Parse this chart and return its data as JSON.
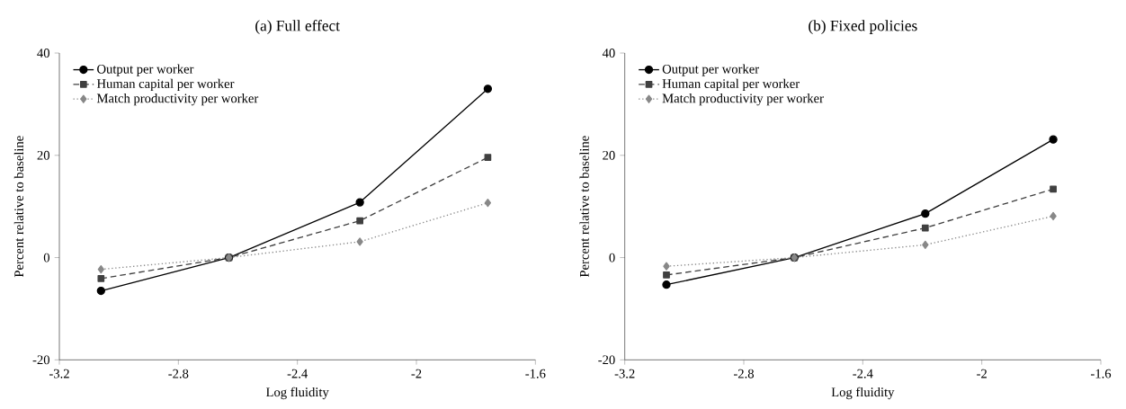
{
  "chart_data": [
    {
      "type": "line",
      "title": "(a) Full effect",
      "xlabel": "Log fluidity",
      "ylabel": "Percent relative to baseline",
      "x": [
        -3.06,
        -2.63,
        -2.19,
        -1.76
      ],
      "xlim": [
        -3.2,
        -1.6
      ],
      "xticks": [
        -3.2,
        -2.8,
        -2.4,
        -2,
        -1.6
      ],
      "ylim": [
        -20,
        40
      ],
      "yticks": [
        -20,
        0,
        20,
        40
      ],
      "legend": "top left",
      "series": [
        {
          "name": "Output per worker",
          "color": "#000000",
          "marker": "circle",
          "line_style": "solid",
          "values": [
            -6.5,
            0,
            10.8,
            33.0
          ]
        },
        {
          "name": "Human capital per worker",
          "color": "#404040",
          "marker": "square",
          "line_style": "dashed",
          "values": [
            -4.1,
            0,
            7.2,
            19.6
          ]
        },
        {
          "name": "Match productivity per worker",
          "color": "#888888",
          "marker": "diamond",
          "line_style": "dotted",
          "values": [
            -2.3,
            0,
            3.1,
            10.7
          ]
        }
      ]
    },
    {
      "type": "line",
      "title": "(b) Fixed policies",
      "xlabel": "Log fluidity",
      "ylabel": "Percent relative to baseline",
      "x": [
        -3.06,
        -2.63,
        -2.19,
        -1.76
      ],
      "xlim": [
        -3.2,
        -1.6
      ],
      "xticks": [
        -3.2,
        -2.8,
        -2.4,
        -2,
        -1.6
      ],
      "ylim": [
        -20,
        40
      ],
      "yticks": [
        -20,
        0,
        20,
        40
      ],
      "legend": "top left",
      "series": [
        {
          "name": "Output per worker",
          "color": "#000000",
          "marker": "circle",
          "line_style": "solid",
          "values": [
            -5.3,
            0,
            8.6,
            23.1
          ]
        },
        {
          "name": "Human capital per worker",
          "color": "#404040",
          "marker": "square",
          "line_style": "dashed",
          "values": [
            -3.4,
            0,
            5.8,
            13.4
          ]
        },
        {
          "name": "Match productivity per worker",
          "color": "#888888",
          "marker": "diamond",
          "line_style": "dotted",
          "values": [
            -1.7,
            0,
            2.5,
            8.1
          ]
        }
      ]
    }
  ]
}
